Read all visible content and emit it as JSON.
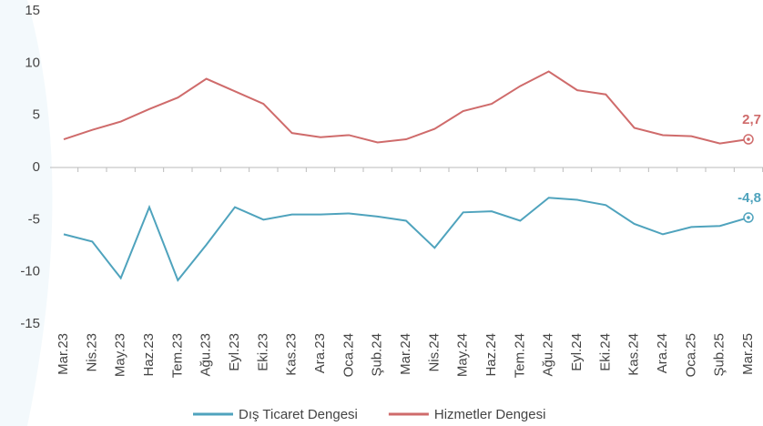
{
  "chart_data": {
    "type": "line",
    "categories": [
      "Mar.23",
      "Nis.23",
      "May.23",
      "Haz.23",
      "Tem.23",
      "Ağu.23",
      "Eyl.23",
      "Eki.23",
      "Kas.23",
      "Ara.23",
      "Oca.24",
      "Şub.24",
      "Mar.24",
      "Nis.24",
      "May.24",
      "Haz.24",
      "Tem.24",
      "Ağu.24",
      "Eyl.24",
      "Eki.24",
      "Kas.24",
      "Ara.24",
      "Oca.25",
      "Şub.25",
      "Mar.25"
    ],
    "series": [
      {
        "name": "Dış Ticaret Dengesi",
        "color": "#4fa3bd",
        "values": [
          -6.4,
          -7.1,
          -10.6,
          -3.8,
          -10.8,
          -7.4,
          -3.8,
          -5.0,
          -4.5,
          -4.5,
          -4.4,
          -4.7,
          -5.1,
          -7.7,
          -4.3,
          -4.2,
          -5.1,
          -2.9,
          -3.1,
          -3.6,
          -5.4,
          -6.4,
          -5.7,
          -5.6,
          -4.8
        ],
        "value_labels": [
          null,
          null,
          null,
          null,
          null,
          null,
          null,
          null,
          null,
          null,
          null,
          null,
          null,
          null,
          null,
          null,
          null,
          null,
          null,
          null,
          null,
          null,
          null,
          null,
          "-4,8"
        ]
      },
      {
        "name": "Hizmetler Dengesi",
        "color": "#cf6b6b",
        "values": [
          2.7,
          3.6,
          4.4,
          5.6,
          6.7,
          8.5,
          7.3,
          6.1,
          3.3,
          2.9,
          3.1,
          2.4,
          2.7,
          3.7,
          5.4,
          6.1,
          7.8,
          9.2,
          7.4,
          7.0,
          3.8,
          3.1,
          3.0,
          2.3,
          2.7
        ],
        "value_labels": [
          null,
          null,
          null,
          null,
          null,
          null,
          null,
          null,
          null,
          null,
          null,
          null,
          null,
          null,
          null,
          null,
          null,
          null,
          null,
          null,
          null,
          null,
          null,
          null,
          "2,7"
        ]
      }
    ],
    "ylim": [
      -15,
      15
    ],
    "yticks": [
      -15,
      -10,
      -5,
      0,
      5,
      10,
      15
    ],
    "grid": false,
    "legend": "bottom"
  }
}
